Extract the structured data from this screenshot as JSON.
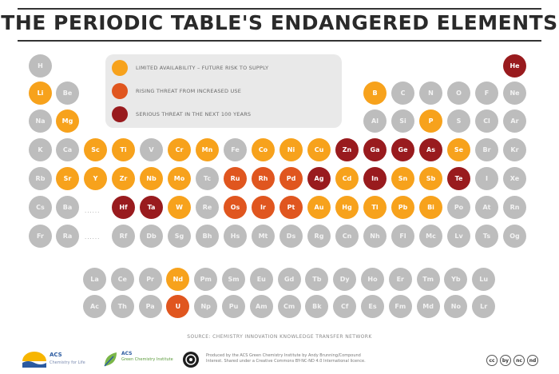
{
  "title": "THE PERIODIC TABLE'S ENDANGERED ELEMENTS",
  "colors": {
    "none": "#bdbdbd",
    "limited": "#f7a21c",
    "rising": "#e0561f",
    "serious": "#991b1e"
  },
  "legend": [
    {
      "status": "limited",
      "label": "LIMITED AVAILABILITY – FUTURE RISK TO SUPPLY"
    },
    {
      "status": "rising",
      "label": "RISING THREAT FROM INCREASED USE"
    },
    {
      "status": "serious",
      "label": "SERIOUS THREAT IN THE NEXT 100 YEARS"
    }
  ],
  "gap_markers": [
    "......",
    "......"
  ],
  "elements": [
    {
      "sym": "H",
      "status": "none"
    },
    {
      "sym": "He",
      "status": "serious"
    },
    {
      "sym": "Li",
      "status": "limited"
    },
    {
      "sym": "Be",
      "status": "none"
    },
    {
      "sym": "B",
      "status": "limited"
    },
    {
      "sym": "C",
      "status": "none"
    },
    {
      "sym": "N",
      "status": "none"
    },
    {
      "sym": "O",
      "status": "none"
    },
    {
      "sym": "F",
      "status": "none"
    },
    {
      "sym": "Ne",
      "status": "none"
    },
    {
      "sym": "Na",
      "status": "none"
    },
    {
      "sym": "Mg",
      "status": "limited"
    },
    {
      "sym": "Al",
      "status": "none"
    },
    {
      "sym": "Si",
      "status": "none"
    },
    {
      "sym": "P",
      "status": "limited"
    },
    {
      "sym": "S",
      "status": "none"
    },
    {
      "sym": "Cl",
      "status": "none"
    },
    {
      "sym": "Ar",
      "status": "none"
    },
    {
      "sym": "K",
      "status": "none"
    },
    {
      "sym": "Ca",
      "status": "none"
    },
    {
      "sym": "Sc",
      "status": "limited"
    },
    {
      "sym": "Ti",
      "status": "limited"
    },
    {
      "sym": "V",
      "status": "none"
    },
    {
      "sym": "Cr",
      "status": "limited"
    },
    {
      "sym": "Mn",
      "status": "limited"
    },
    {
      "sym": "Fe",
      "status": "none"
    },
    {
      "sym": "Co",
      "status": "limited"
    },
    {
      "sym": "Ni",
      "status": "limited"
    },
    {
      "sym": "Cu",
      "status": "limited"
    },
    {
      "sym": "Zn",
      "status": "serious"
    },
    {
      "sym": "Ga",
      "status": "serious"
    },
    {
      "sym": "Ge",
      "status": "serious"
    },
    {
      "sym": "As",
      "status": "serious"
    },
    {
      "sym": "Se",
      "status": "limited"
    },
    {
      "sym": "Br",
      "status": "none"
    },
    {
      "sym": "Kr",
      "status": "none"
    },
    {
      "sym": "Rb",
      "status": "none"
    },
    {
      "sym": "Sr",
      "status": "limited"
    },
    {
      "sym": "Y",
      "status": "limited"
    },
    {
      "sym": "Zr",
      "status": "limited"
    },
    {
      "sym": "Nb",
      "status": "limited"
    },
    {
      "sym": "Mo",
      "status": "limited"
    },
    {
      "sym": "Tc",
      "status": "none"
    },
    {
      "sym": "Ru",
      "status": "rising"
    },
    {
      "sym": "Rh",
      "status": "rising"
    },
    {
      "sym": "Pd",
      "status": "rising"
    },
    {
      "sym": "Ag",
      "status": "serious"
    },
    {
      "sym": "Cd",
      "status": "limited"
    },
    {
      "sym": "In",
      "status": "serious"
    },
    {
      "sym": "Sn",
      "status": "limited"
    },
    {
      "sym": "Sb",
      "status": "limited"
    },
    {
      "sym": "Te",
      "status": "serious"
    },
    {
      "sym": "I",
      "status": "none"
    },
    {
      "sym": "Xe",
      "status": "none"
    },
    {
      "sym": "Cs",
      "status": "none"
    },
    {
      "sym": "Ba",
      "status": "none"
    },
    {
      "sym": "Hf",
      "status": "serious"
    },
    {
      "sym": "Ta",
      "status": "serious"
    },
    {
      "sym": "W",
      "status": "limited"
    },
    {
      "sym": "Re",
      "status": "none"
    },
    {
      "sym": "Os",
      "status": "rising"
    },
    {
      "sym": "Ir",
      "status": "rising"
    },
    {
      "sym": "Pt",
      "status": "rising"
    },
    {
      "sym": "Au",
      "status": "limited"
    },
    {
      "sym": "Hg",
      "status": "limited"
    },
    {
      "sym": "Tl",
      "status": "limited"
    },
    {
      "sym": "Pb",
      "status": "limited"
    },
    {
      "sym": "Bi",
      "status": "limited"
    },
    {
      "sym": "Po",
      "status": "none"
    },
    {
      "sym": "At",
      "status": "none"
    },
    {
      "sym": "Rn",
      "status": "none"
    },
    {
      "sym": "Fr",
      "status": "none"
    },
    {
      "sym": "Ra",
      "status": "none"
    },
    {
      "sym": "Rf",
      "status": "none"
    },
    {
      "sym": "Db",
      "status": "none"
    },
    {
      "sym": "Sg",
      "status": "none"
    },
    {
      "sym": "Bh",
      "status": "none"
    },
    {
      "sym": "Hs",
      "status": "none"
    },
    {
      "sym": "Mt",
      "status": "none"
    },
    {
      "sym": "Ds",
      "status": "none"
    },
    {
      "sym": "Rg",
      "status": "none"
    },
    {
      "sym": "Cn",
      "status": "none"
    },
    {
      "sym": "Nh",
      "status": "none"
    },
    {
      "sym": "Fl",
      "status": "none"
    },
    {
      "sym": "Mc",
      "status": "none"
    },
    {
      "sym": "Lv",
      "status": "none"
    },
    {
      "sym": "Ts",
      "status": "none"
    },
    {
      "sym": "Og",
      "status": "none"
    },
    {
      "sym": "La",
      "status": "none"
    },
    {
      "sym": "Ce",
      "status": "none"
    },
    {
      "sym": "Pr",
      "status": "none"
    },
    {
      "sym": "Nd",
      "status": "limited"
    },
    {
      "sym": "Pm",
      "status": "none"
    },
    {
      "sym": "Sm",
      "status": "none"
    },
    {
      "sym": "Eu",
      "status": "none"
    },
    {
      "sym": "Gd",
      "status": "none"
    },
    {
      "sym": "Tb",
      "status": "none"
    },
    {
      "sym": "Dy",
      "status": "none"
    },
    {
      "sym": "Ho",
      "status": "none"
    },
    {
      "sym": "Er",
      "status": "none"
    },
    {
      "sym": "Tm",
      "status": "none"
    },
    {
      "sym": "Yb",
      "status": "none"
    },
    {
      "sym": "Lu",
      "status": "none"
    },
    {
      "sym": "Ac",
      "status": "none"
    },
    {
      "sym": "Th",
      "status": "none"
    },
    {
      "sym": "Pa",
      "status": "none"
    },
    {
      "sym": "U",
      "status": "rising"
    },
    {
      "sym": "Np",
      "status": "none"
    },
    {
      "sym": "Pu",
      "status": "none"
    },
    {
      "sym": "Am",
      "status": "none"
    },
    {
      "sym": "Cm",
      "status": "none"
    },
    {
      "sym": "Bk",
      "status": "none"
    },
    {
      "sym": "Cf",
      "status": "none"
    },
    {
      "sym": "Es",
      "status": "none"
    },
    {
      "sym": "Fm",
      "status": "none"
    },
    {
      "sym": "Md",
      "status": "none"
    },
    {
      "sym": "No",
      "status": "none"
    },
    {
      "sym": "Lr",
      "status": "none"
    }
  ],
  "source": "SOURCE: CHEMISTRY INNOVATION KNOWLEDGE TRANSFER NETWORK",
  "footer": {
    "acs_logo": "ACS",
    "acs_sub": "Chemistry for Life",
    "gci_logo": "ACS",
    "gci_sub": "Green Chemistry Institute",
    "credit": "Produced by the ACS Green Chemistry Institute by Andy Brunning/Compound Interest. Shared under a Creative Commons BY-NC-ND 4.0 International licence.",
    "cc_icons": [
      "cc",
      "by",
      "nc",
      "nd"
    ]
  }
}
